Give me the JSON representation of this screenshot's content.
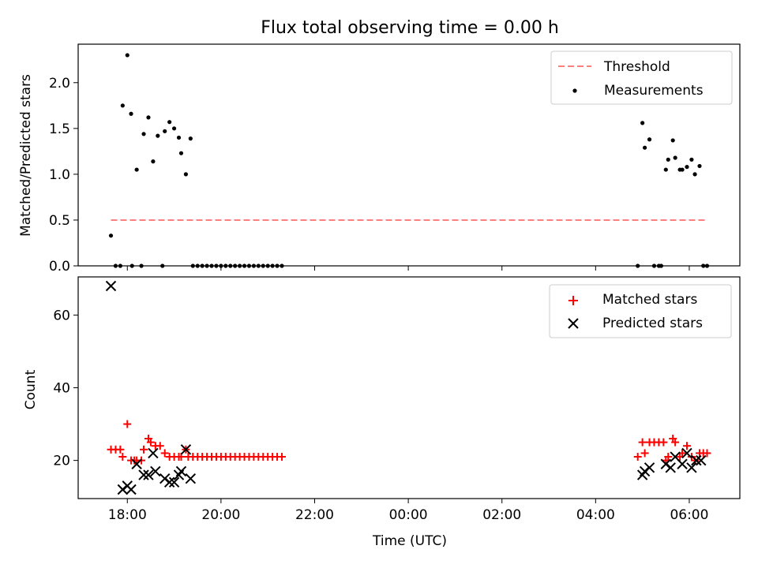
{
  "chart_data": [
    {
      "type": "scatter",
      "title": "Flux total observing time = 0.00 h",
      "xlabel": "",
      "ylabel": "Matched/Predicted stars",
      "x_unit": "hours since 18:00 UTC",
      "xlim": [
        -1.05,
        13.08
      ],
      "ylim": [
        0,
        2.42
      ],
      "yticks": [
        "0.0",
        "0.5",
        "1.0",
        "1.5",
        "2.0"
      ],
      "legend_position": "top-right",
      "threshold": {
        "name": "Threshold",
        "value": 0.5,
        "x_range": [
          -0.35,
          12.35
        ],
        "color": "#ff7f7f"
      },
      "series": [
        {
          "name": "Measurements",
          "color": "#000000",
          "points": [
            [
              -0.35,
              0.33
            ],
            [
              -0.25,
              0.0
            ],
            [
              -0.15,
              0.0
            ],
            [
              -0.1,
              1.75
            ],
            [
              0.0,
              2.3
            ],
            [
              0.08,
              1.66
            ],
            [
              0.1,
              0.0
            ],
            [
              0.2,
              1.05
            ],
            [
              0.3,
              0.0
            ],
            [
              0.35,
              1.44
            ],
            [
              0.45,
              1.62
            ],
            [
              0.55,
              1.14
            ],
            [
              0.65,
              1.42
            ],
            [
              0.75,
              0.0
            ],
            [
              0.8,
              1.47
            ],
            [
              0.9,
              1.57
            ],
            [
              1.0,
              1.5
            ],
            [
              1.1,
              1.4
            ],
            [
              1.15,
              1.23
            ],
            [
              1.25,
              1.0
            ],
            [
              1.35,
              1.39
            ],
            [
              1.4,
              0.0
            ],
            [
              1.5,
              0.0
            ],
            [
              1.6,
              0.0
            ],
            [
              1.7,
              0.0
            ],
            [
              1.8,
              0.0
            ],
            [
              1.9,
              0.0
            ],
            [
              2.0,
              0.0
            ],
            [
              2.1,
              0.0
            ],
            [
              2.2,
              0.0
            ],
            [
              2.3,
              0.0
            ],
            [
              2.4,
              0.0
            ],
            [
              2.5,
              0.0
            ],
            [
              2.6,
              0.0
            ],
            [
              2.7,
              0.0
            ],
            [
              2.8,
              0.0
            ],
            [
              2.9,
              0.0
            ],
            [
              3.0,
              0.0
            ],
            [
              3.1,
              0.0
            ],
            [
              3.2,
              0.0
            ],
            [
              3.3,
              0.0
            ],
            [
              10.9,
              0.0
            ],
            [
              11.0,
              1.56
            ],
            [
              11.05,
              1.29
            ],
            [
              11.15,
              1.38
            ],
            [
              11.25,
              0.0
            ],
            [
              11.35,
              0.0
            ],
            [
              11.4,
              0.0
            ],
            [
              11.5,
              1.05
            ],
            [
              11.55,
              1.16
            ],
            [
              11.65,
              1.37
            ],
            [
              11.7,
              1.18
            ],
            [
              11.8,
              1.05
            ],
            [
              11.85,
              1.05
            ],
            [
              11.95,
              1.08
            ],
            [
              12.05,
              1.16
            ],
            [
              12.12,
              1.0
            ],
            [
              12.22,
              1.09
            ],
            [
              12.3,
              0.0
            ],
            [
              12.38,
              0.0
            ]
          ]
        }
      ]
    },
    {
      "type": "scatter",
      "title": "",
      "xlabel": "Time (UTC)",
      "ylabel": "Count",
      "x_unit": "hours since 18:00 UTC",
      "xlim": [
        -1.05,
        13.08
      ],
      "ylim": [
        9.5,
        70.5
      ],
      "yticks": [
        "20",
        "40",
        "60"
      ],
      "xticks": [
        {
          "h": 0,
          "label": "18:00"
        },
        {
          "h": 2,
          "label": "20:00"
        },
        {
          "h": 4,
          "label": "22:00"
        },
        {
          "h": 6,
          "label": "00:00"
        },
        {
          "h": 8,
          "label": "02:00"
        },
        {
          "h": 10,
          "label": "04:00"
        },
        {
          "h": 12,
          "label": "06:00"
        }
      ],
      "legend_position": "top-right",
      "series": [
        {
          "name": "Matched stars",
          "marker": "plus",
          "color": "#ff0000",
          "points": [
            [
              -0.35,
              23
            ],
            [
              -0.25,
              23
            ],
            [
              -0.15,
              23
            ],
            [
              -0.1,
              21
            ],
            [
              0.0,
              30
            ],
            [
              0.08,
              20
            ],
            [
              0.15,
              20
            ],
            [
              0.2,
              20
            ],
            [
              0.3,
              20
            ],
            [
              0.35,
              23
            ],
            [
              0.45,
              26
            ],
            [
              0.5,
              25
            ],
            [
              0.6,
              24
            ],
            [
              0.7,
              24
            ],
            [
              0.8,
              22
            ],
            [
              0.9,
              21
            ],
            [
              1.0,
              21
            ],
            [
              1.1,
              21
            ],
            [
              1.15,
              21
            ],
            [
              1.25,
              23
            ],
            [
              1.3,
              21
            ],
            [
              1.4,
              21
            ],
            [
              1.5,
              21
            ],
            [
              1.6,
              21
            ],
            [
              1.7,
              21
            ],
            [
              1.8,
              21
            ],
            [
              1.9,
              21
            ],
            [
              2.0,
              21
            ],
            [
              2.1,
              21
            ],
            [
              2.2,
              21
            ],
            [
              2.3,
              21
            ],
            [
              2.4,
              21
            ],
            [
              2.5,
              21
            ],
            [
              2.6,
              21
            ],
            [
              2.7,
              21
            ],
            [
              2.8,
              21
            ],
            [
              2.9,
              21
            ],
            [
              3.0,
              21
            ],
            [
              3.1,
              21
            ],
            [
              3.2,
              21
            ],
            [
              3.3,
              21
            ],
            [
              10.9,
              21
            ],
            [
              11.0,
              25
            ],
            [
              11.05,
              22
            ],
            [
              11.15,
              25
            ],
            [
              11.25,
              25
            ],
            [
              11.35,
              25
            ],
            [
              11.45,
              25
            ],
            [
              11.5,
              20
            ],
            [
              11.55,
              21
            ],
            [
              11.65,
              26
            ],
            [
              11.7,
              25
            ],
            [
              11.8,
              21
            ],
            [
              11.85,
              22
            ],
            [
              11.95,
              24
            ],
            [
              12.05,
              21
            ],
            [
              12.12,
              20
            ],
            [
              12.22,
              22
            ],
            [
              12.3,
              22
            ],
            [
              12.38,
              22
            ]
          ]
        },
        {
          "name": "Predicted stars",
          "marker": "x",
          "color": "#000000",
          "points": [
            [
              -0.35,
              68
            ],
            [
              -0.1,
              12
            ],
            [
              0.0,
              13
            ],
            [
              0.08,
              12
            ],
            [
              0.2,
              19
            ],
            [
              0.35,
              16
            ],
            [
              0.45,
              16
            ],
            [
              0.55,
              22
            ],
            [
              0.6,
              17
            ],
            [
              0.8,
              15
            ],
            [
              0.9,
              14
            ],
            [
              1.0,
              14
            ],
            [
              1.1,
              16
            ],
            [
              1.15,
              17
            ],
            [
              1.25,
              23
            ],
            [
              1.35,
              15
            ],
            [
              11.0,
              16
            ],
            [
              11.05,
              17
            ],
            [
              11.15,
              18
            ],
            [
              11.5,
              19
            ],
            [
              11.6,
              18
            ],
            [
              11.7,
              21
            ],
            [
              11.85,
              19
            ],
            [
              11.95,
              22
            ],
            [
              12.05,
              18
            ],
            [
              12.15,
              20
            ],
            [
              12.25,
              20
            ]
          ]
        }
      ]
    }
  ]
}
